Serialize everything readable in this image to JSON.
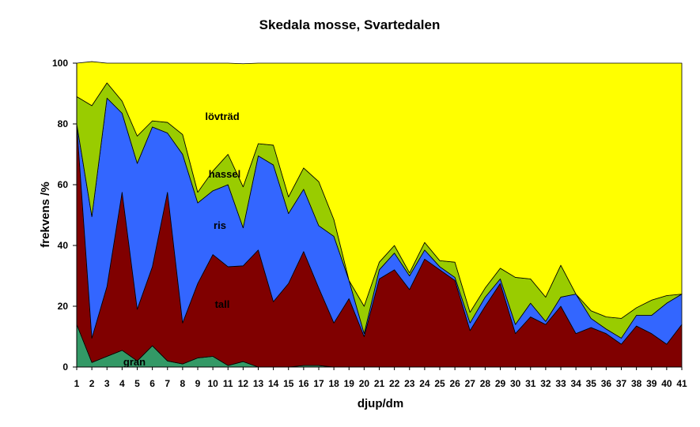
{
  "chart_data": {
    "type": "area",
    "stacked": true,
    "title": "Skedala mosse, Svartedalen",
    "xlabel": "djup/dm",
    "ylabel": "frekvens /%",
    "ylim": [
      0,
      100
    ],
    "yticks": [
      0,
      20,
      40,
      60,
      80,
      100
    ],
    "grid": false,
    "legend": "none",
    "x": [
      1,
      2,
      3,
      4,
      5,
      6,
      7,
      8,
      9,
      10,
      11,
      12,
      13,
      14,
      15,
      16,
      17,
      18,
      19,
      20,
      21,
      22,
      23,
      24,
      25,
      26,
      27,
      28,
      29,
      30,
      31,
      32,
      33,
      34,
      35,
      36,
      37,
      38,
      39,
      40,
      41
    ],
    "series": [
      {
        "name": "gran",
        "color": "#339966",
        "values": [
          14,
          1.5,
          3.5,
          5.5,
          2,
          7,
          2,
          1,
          3,
          3.5,
          0.5,
          1.8,
          0,
          0,
          0,
          0.5,
          0.5,
          0,
          0,
          0,
          0,
          0,
          0,
          0,
          0,
          0,
          0,
          0,
          0,
          0,
          0,
          0,
          0,
          0,
          0,
          0,
          0,
          0,
          0,
          0,
          0
        ]
      },
      {
        "name": "tall",
        "color": "#800000",
        "values": [
          66,
          8,
          23,
          52,
          17,
          26,
          55.5,
          13.5,
          24.5,
          33.5,
          32.5,
          31.5,
          38.5,
          21.5,
          27.5,
          37.5,
          25.5,
          14.5,
          22.5,
          10,
          29,
          32,
          25.5,
          35.5,
          32,
          28.5,
          12,
          20,
          27.5,
          11,
          16.5,
          14,
          20,
          11,
          13,
          11,
          7.5,
          13.5,
          11,
          7.5,
          14
        ]
      },
      {
        "name": "ris",
        "color": "#3366ff",
        "values": [
          0,
          40,
          62,
          26,
          48,
          46,
          19.5,
          55.5,
          26.5,
          21,
          27,
          12.5,
          31,
          45,
          23,
          20.5,
          20.5,
          28.5,
          6,
          1,
          3,
          5.5,
          4.5,
          3,
          1,
          1,
          2.5,
          3,
          1.5,
          3,
          4.5,
          1,
          3,
          13,
          3,
          1.5,
          2,
          3.5,
          6,
          13.5,
          10
        ]
      },
      {
        "name": "hassel",
        "color": "#99cc00",
        "values": [
          9,
          36.5,
          5,
          4,
          9,
          2,
          3.5,
          6.5,
          3.5,
          6.5,
          10,
          13.5,
          4,
          6.5,
          5.5,
          7,
          14.5,
          5.5,
          0,
          9,
          2.5,
          2.5,
          1,
          2.5,
          2,
          5,
          3.5,
          3,
          3.5,
          15.5,
          8,
          8,
          10.5,
          0,
          2.5,
          4,
          6.5,
          2.5,
          5,
          2.5,
          0
        ]
      },
      {
        "name": "lövträd",
        "color": "#ffff00",
        "values": [
          11,
          14.5,
          6.5,
          12.5,
          24,
          19,
          19.5,
          23.5,
          42.5,
          35.5,
          30,
          40.5,
          26.5,
          27,
          44,
          34.5,
          39,
          51.5,
          71.5,
          80,
          65.5,
          60,
          69,
          59,
          65,
          65.5,
          82,
          74,
          67.5,
          70.5,
          71,
          77,
          66.5,
          76,
          81.5,
          83.5,
          84,
          80.5,
          78,
          76.5,
          76
        ]
      }
    ],
    "series_labels": [
      "gran",
      "tall",
      "ris",
      "hassel",
      "lövträd"
    ]
  }
}
